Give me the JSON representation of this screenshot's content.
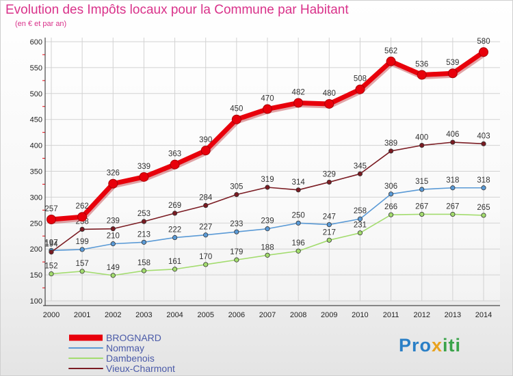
{
  "chart_data": {
    "type": "line",
    "title": "Evolution des Impôts locaux pour la Commune par Habitant",
    "subtitle": "(en € et par an)",
    "xlabel": "",
    "ylabel": "",
    "x": [
      "2000",
      "2001",
      "2002",
      "2003",
      "2004",
      "2005",
      "2006",
      "2007",
      "2008",
      "2009",
      "2010",
      "2011",
      "2012",
      "2013",
      "2014"
    ],
    "ylim": [
      100,
      600
    ],
    "yticks": [
      100,
      150,
      200,
      250,
      300,
      350,
      400,
      450,
      500,
      550,
      600
    ],
    "grid": true,
    "legend_position": "bottom-left",
    "series": [
      {
        "name": "BROGNARD",
        "color": "#e8000b",
        "labels": [
          "257",
          "262",
          "326",
          "339",
          "363",
          "390",
          "450",
          "470",
          "482",
          "480",
          "508",
          "562",
          "536",
          "539",
          "580"
        ],
        "values": [
          257,
          262,
          326,
          339,
          363,
          390,
          450,
          470,
          482,
          480,
          508,
          562,
          536,
          539,
          580
        ]
      },
      {
        "name": "Nommay",
        "color": "#5a9ad6",
        "labels": [
          "197",
          "199",
          "210",
          "213",
          "222",
          "227",
          "233",
          "239",
          "250",
          "247",
          "258",
          "306",
          "315",
          "318",
          "318"
        ],
        "values": [
          197,
          199,
          210,
          213,
          222,
          227,
          233,
          239,
          250,
          247,
          258,
          306,
          315,
          318,
          318
        ]
      },
      {
        "name": "Dambenois",
        "color": "#a3dc6e",
        "labels": [
          "152",
          "157",
          "149",
          "158",
          "161",
          "170",
          "179",
          "188",
          "196",
          "217",
          "231",
          "266",
          "267",
          "267",
          "265"
        ],
        "values": [
          152,
          157,
          149,
          158,
          161,
          170,
          179,
          188,
          196,
          217,
          231,
          266,
          267,
          267,
          265
        ]
      },
      {
        "name": "Vieux-Charmont",
        "color": "#7a1b22",
        "labels": [
          "194",
          "238",
          "239",
          "253",
          "269",
          "284",
          "305",
          "319",
          "314",
          "329",
          "345",
          "389",
          "400",
          "406",
          "403"
        ],
        "values": [
          194,
          238,
          239,
          253,
          269,
          284,
          305,
          319,
          314,
          329,
          345,
          389,
          400,
          406,
          403
        ]
      }
    ]
  },
  "logo": {
    "part1": "Pro",
    "part2": "x",
    "part3": "iti"
  }
}
